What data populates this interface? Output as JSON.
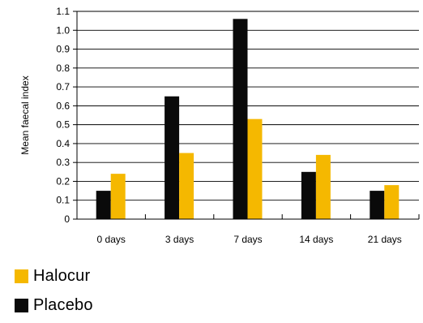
{
  "chart_data": {
    "type": "bar",
    "categories": [
      "0 days",
      "3 days",
      "7 days",
      "14 days",
      "21 days"
    ],
    "series": [
      {
        "name": "Placebo",
        "color": "#0a0a0a",
        "values": [
          0.15,
          0.65,
          1.06,
          0.25,
          0.15
        ]
      },
      {
        "name": "Halocur",
        "color": "#f5b800",
        "values": [
          0.24,
          0.35,
          0.53,
          0.34,
          0.18
        ]
      }
    ],
    "ylabel": "Mean faecal index",
    "xlabel": "",
    "title": "",
    "ylim": [
      0,
      1.1
    ],
    "yticks": [
      0,
      0.1,
      0.2,
      0.3,
      0.4,
      0.5,
      0.6,
      0.7,
      0.8,
      0.9,
      1.0,
      1.1
    ],
    "ytick_labels": [
      "0",
      "0.1",
      "0.2",
      "0.3",
      "0.4",
      "0.5",
      "0.6",
      "0.7",
      "0.8",
      "0.9",
      "1.0",
      "1.1"
    ],
    "grid": true,
    "legend_position": "bottom-left"
  },
  "legend": {
    "items": [
      {
        "label": "Halocur",
        "color": "#f5b800"
      },
      {
        "label": "Placebo",
        "color": "#0a0a0a"
      }
    ]
  }
}
